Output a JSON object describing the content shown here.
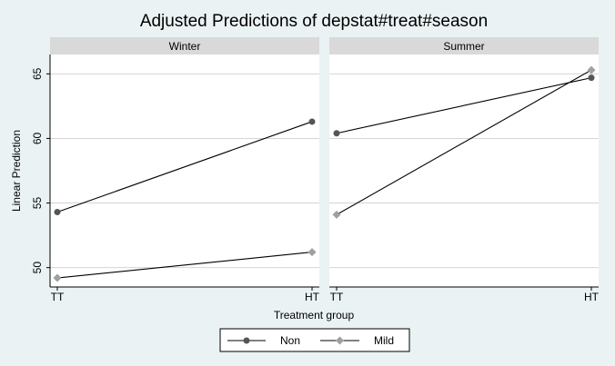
{
  "chart_data": {
    "type": "line",
    "title": "Adjusted Predictions of depstat#treat#season",
    "xlabel": "Treatment group",
    "ylabel": "Linear Prediction",
    "categories": [
      "TT",
      "HT"
    ],
    "ylim": [
      48.5,
      66.5
    ],
    "yticks": [
      50,
      55,
      60,
      65
    ],
    "grid": true,
    "legend_position": "bottom",
    "panels": [
      {
        "label": "Winter",
        "series": [
          {
            "name": "Non",
            "values": [
              54.3,
              61.3
            ]
          },
          {
            "name": "Mild",
            "values": [
              49.2,
              51.2
            ]
          }
        ]
      },
      {
        "label": "Summer",
        "series": [
          {
            "name": "Non",
            "values": [
              60.4,
              64.7
            ]
          },
          {
            "name": "Mild",
            "values": [
              54.1,
              65.3
            ]
          }
        ]
      }
    ],
    "series_styles": [
      {
        "name": "Non",
        "color": "#555555",
        "marker": "circle"
      },
      {
        "name": "Mild",
        "color": "#a0a0a0",
        "marker": "diamond"
      }
    ]
  }
}
